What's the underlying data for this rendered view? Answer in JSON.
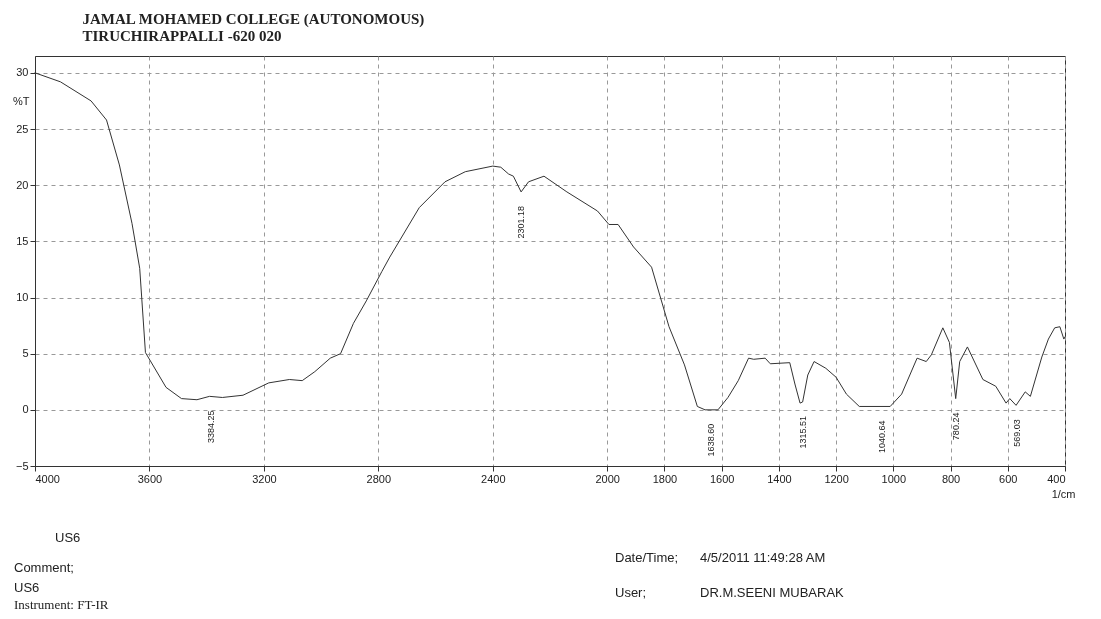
{
  "chart_data": {
    "type": "line",
    "title": "JAMAL MOHAMED COLLEGE (AUTONOMOUS)",
    "subtitle": "TIRUCHIRAPPALLI -620 020",
    "xlabel": "1/cm",
    "ylabel": "%T",
    "x": [
      4000,
      3911,
      3804,
      3750,
      3705,
      3661,
      3634,
      3614,
      3542,
      3488,
      3434,
      3390,
      3345,
      3273,
      3183,
      3111,
      3066,
      3022,
      2968,
      2932,
      2887,
      2842,
      2788,
      2760,
      2657,
      2567,
      2496,
      2400,
      2372,
      2345,
      2328,
      2301,
      2275,
      2221,
      2141,
      2034,
      1994,
      1962,
      1908,
      1845,
      1784,
      1730,
      1685,
      1658,
      1613,
      1578,
      1542,
      1506,
      1488,
      1448,
      1430,
      1362,
      1344,
      1326,
      1317,
      1299,
      1277,
      1236,
      1200,
      1164,
      1119,
      1011,
      971,
      917,
      885,
      867,
      827,
      804,
      782,
      768,
      741,
      687,
      642,
      606,
      593,
      571,
      539,
      521,
      481,
      458,
      436,
      418,
      404,
      400
    ],
    "series": [
      {
        "color": "#333333",
        "values": [
          30.0,
          29.2,
          27.5,
          25.8,
          21.8,
          16.6,
          12.6,
          5.1,
          2.0,
          1.0,
          0.9,
          1.2,
          1.1,
          1.3,
          2.4,
          2.7,
          2.6,
          3.4,
          4.6,
          5.0,
          7.7,
          9.7,
          12.3,
          13.6,
          18.0,
          20.3,
          21.2,
          21.7,
          21.6,
          21.0,
          20.8,
          19.4,
          20.3,
          20.8,
          19.4,
          17.7,
          16.5,
          16.5,
          14.5,
          12.7,
          7.4,
          4.0,
          0.3,
          0.0,
          0.0,
          1.1,
          2.6,
          4.6,
          4.5,
          4.6,
          4.1,
          4.2,
          2.3,
          0.6,
          0.7,
          3.1,
          4.3,
          3.7,
          2.9,
          1.4,
          0.3,
          0.3,
          1.4,
          4.6,
          4.3,
          4.9,
          7.3,
          6.0,
          1.0,
          4.3,
          5.6,
          2.7,
          2.1,
          0.6,
          1.0,
          0.4,
          1.6,
          1.2,
          4.7,
          6.3,
          7.3,
          7.4,
          6.3,
          6.5
        ]
      }
    ],
    "xlim": [
      4000,
      400
    ],
    "xticks": [
      4000,
      3600,
      3200,
      2800,
      2400,
      2000,
      1800,
      1600,
      1400,
      1200,
      1000,
      800,
      600,
      400
    ],
    "ylim": [
      -5,
      31.5
    ],
    "yticks": [
      -5,
      0,
      5,
      10,
      15,
      20,
      25,
      30
    ],
    "grid": true,
    "line_style": "solid",
    "marker": "none",
    "annotations": [
      {
        "text": "3384.25",
        "x": 3384.25,
        "y": 1.2
      },
      {
        "text": "2301.18",
        "x": 2301.18,
        "y": 19.4
      },
      {
        "text": "1638.60",
        "x": 1638.6,
        "y": 0.0
      },
      {
        "text": "1315.51",
        "x": 1315.51,
        "y": 0.7
      },
      {
        "text": "1040.64",
        "x": 1040.64,
        "y": 0.3
      },
      {
        "text": "780.24",
        "x": 780.24,
        "y": 1.0
      },
      {
        "text": "569.03",
        "x": 569.03,
        "y": 0.4
      },
      "US6",
      "Comment;",
      "US6",
      "Instrument: FT-IR",
      "Date/Time;",
      "4/5/2011 11:49:28 AM",
      "User;",
      "DR.M.SEENI MUBARAK"
    ]
  }
}
